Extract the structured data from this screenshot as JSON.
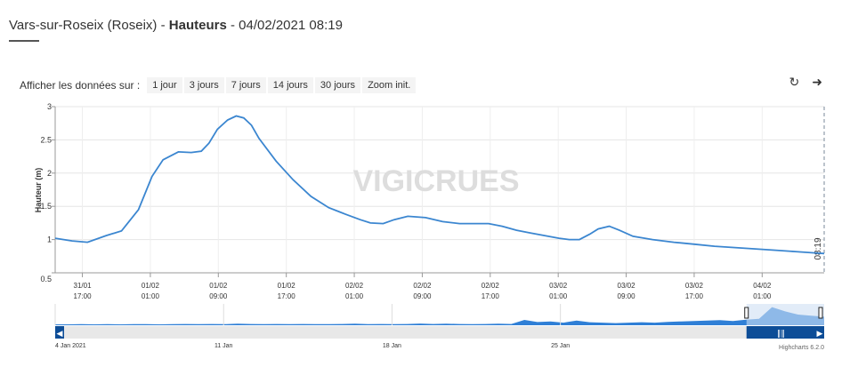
{
  "header": {
    "station": "Vars-sur-Roseix (Roseix)",
    "sep1": " - ",
    "measure": "Hauteurs",
    "sep2": " - ",
    "datetime": "04/02/2021 08:19"
  },
  "range_selector": {
    "label": "Afficher les données sur :",
    "buttons": [
      "1 jour",
      "3 jours",
      "7 jours",
      "14 jours",
      "30 jours",
      "Zoom init."
    ]
  },
  "toolbar": {
    "refresh_icon": "refresh-icon",
    "export_icon": "arrow-share-icon"
  },
  "watermark": "VIGICRUES",
  "credits": "Highcharts 6.2.0",
  "now_label": "08:19",
  "colors": {
    "line": "#3b86d0",
    "nav_fill": "#2f7fd6",
    "nav_selection": "#0d4d97",
    "grid": "#e6e6e6"
  },
  "chart_data": {
    "type": "line",
    "title": "",
    "xlabel": "",
    "ylabel": "Hauteur (m)",
    "ylim": [
      0.5,
      3
    ],
    "y_ticks": [
      "0.5",
      "1",
      "1.5",
      "2",
      "2.5",
      "3"
    ],
    "x_ticks": [
      {
        "t": 14.2,
        "date": "31/01",
        "time": "17:00"
      },
      {
        "t": 22.2,
        "date": "01/02",
        "time": "01:00"
      },
      {
        "t": 30.2,
        "date": "01/02",
        "time": "09:00"
      },
      {
        "t": 38.2,
        "date": "01/02",
        "time": "17:00"
      },
      {
        "t": 46.2,
        "date": "02/02",
        "time": "01:00"
      },
      {
        "t": 54.2,
        "date": "02/02",
        "time": "09:00"
      },
      {
        "t": 62.2,
        "date": "02/02",
        "time": "17:00"
      },
      {
        "t": 70.2,
        "date": "03/02",
        "time": "01:00"
      },
      {
        "t": 78.2,
        "date": "03/02",
        "time": "09:00"
      },
      {
        "t": 86.2,
        "date": "03/02",
        "time": "17:00"
      },
      {
        "t": 94.2,
        "date": "04/02",
        "time": "01:00"
      }
    ],
    "x_range_hours": [
      11.0,
      101.5
    ],
    "now_t": 101.5,
    "series": [
      {
        "x": [
          11.0,
          13.0,
          14.8,
          17.0,
          18.8,
          20.8,
          22.4,
          23.7,
          25.5,
          27.0,
          28.2,
          29.1,
          30.1,
          31.3,
          32.3,
          33.2,
          34.1,
          35.0,
          37.0,
          39.0,
          41.1,
          43.2,
          45.2,
          46.9,
          48.1,
          49.6,
          50.9,
          52.5,
          54.6,
          56.6,
          58.6,
          60.4,
          62.0,
          63.6,
          65.3,
          66.9,
          68.6,
          70.3,
          71.5,
          72.7,
          73.9,
          74.9,
          76.2,
          77.4,
          79.0,
          81.3,
          83.8,
          86.2,
          88.6,
          91.0,
          93.4,
          95.8,
          98.1,
          100.4,
          101.5
        ],
        "y": [
          1.02,
          0.98,
          0.96,
          1.06,
          1.13,
          1.45,
          1.95,
          2.2,
          2.32,
          2.31,
          2.33,
          2.45,
          2.66,
          2.8,
          2.86,
          2.83,
          2.72,
          2.52,
          2.18,
          1.9,
          1.65,
          1.48,
          1.38,
          1.3,
          1.25,
          1.24,
          1.3,
          1.35,
          1.33,
          1.27,
          1.24,
          1.24,
          1.24,
          1.2,
          1.14,
          1.1,
          1.06,
          1.02,
          1.0,
          1.0,
          1.08,
          1.16,
          1.2,
          1.14,
          1.05,
          1.0,
          0.96,
          0.93,
          0.9,
          0.88,
          0.86,
          0.84,
          0.82,
          0.8,
          0.79
        ]
      }
    ],
    "navigator": {
      "labels": [
        {
          "pos": 0.0,
          "text": "4 Jan 2021"
        },
        {
          "pos": 0.219,
          "text": "11 Jan"
        },
        {
          "pos": 0.438,
          "text": "18 Jan"
        },
        {
          "pos": 0.657,
          "text": "25 Jan"
        }
      ],
      "selection": [
        0.899,
        1.0
      ],
      "profile": [
        0.04,
        0.04,
        0.05,
        0.04,
        0.05,
        0.04,
        0.05,
        0.05,
        0.04,
        0.05,
        0.06,
        0.05,
        0.06,
        0.05,
        0.07,
        0.06,
        0.05,
        0.06,
        0.05,
        0.06,
        0.05,
        0.05,
        0.06,
        0.07,
        0.05,
        0.06,
        0.05,
        0.06,
        0.08,
        0.06,
        0.07,
        0.06,
        0.05,
        0.06,
        0.07,
        0.06,
        0.25,
        0.15,
        0.18,
        0.12,
        0.22,
        0.14,
        0.12,
        0.1,
        0.12,
        0.14,
        0.12,
        0.16,
        0.18,
        0.2,
        0.22,
        0.24,
        0.2,
        0.26,
        0.3,
        0.85,
        0.65,
        0.5,
        0.45,
        0.4
      ]
    }
  }
}
